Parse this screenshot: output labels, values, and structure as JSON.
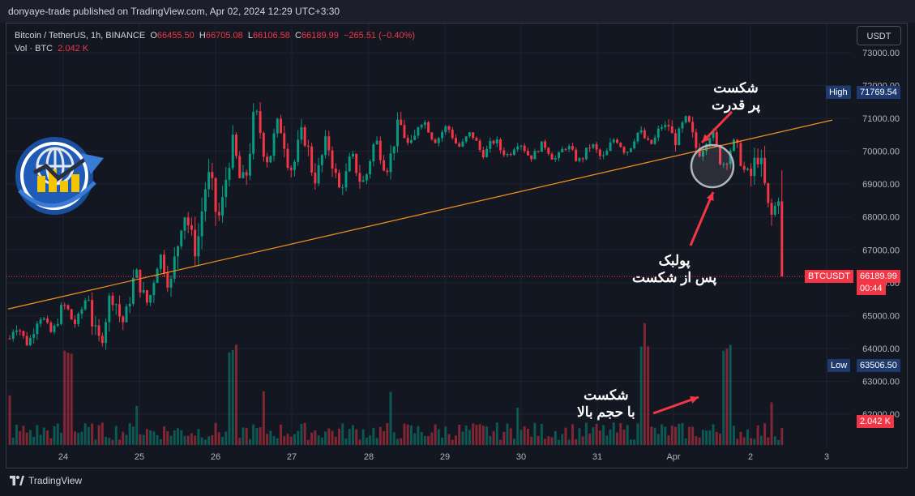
{
  "publisher_line": "donyaye-trade published on TradingView.com, Apr 02, 2024 12:29 UTC+3:30",
  "legend": {
    "symbol": "Bitcoin / TetherUS, 1h, BINANCE",
    "open_label": "O",
    "open": "66455.50",
    "high_label": "H",
    "high": "66705.08",
    "low_label": "L",
    "low": "66106.58",
    "close_label": "C",
    "close": "66189.99",
    "change": "−265.51 (−0.40%)",
    "vol_label": "Vol · BTC",
    "vol_value": "2.042 K"
  },
  "currency_button": "USDT",
  "price_tags": {
    "high_label": "High",
    "high_value": "71769.54",
    "symbol_label": "BTCUSDT",
    "last_value": "66189.99",
    "countdown": "00:44",
    "low_label": "Low",
    "low_value": "63506.50",
    "volume_value": "2.042 K"
  },
  "annotations": {
    "breakout_line1": "شکست",
    "breakout_line2": "پر قدرت",
    "pullback_line1": "پولبک",
    "pullback_line2": "پس از شکست",
    "volume_line1": "شکست",
    "volume_line2": "با حجم بالا"
  },
  "footer_brand": "TradingView",
  "colors": {
    "background": "#131722",
    "up": "#089981",
    "down": "#f23645",
    "trendline": "#f7931a",
    "grid": "#1f2330",
    "arrow": "#f23645",
    "highlight_circle": "#b2b5be"
  },
  "chart_data": {
    "type": "candlestick",
    "x_tick_labels": [
      "24",
      "25",
      "26",
      "27",
      "28",
      "29",
      "30",
      "31",
      "Apr",
      "2",
      "3"
    ],
    "y_tick_labels": [
      "62000.00",
      "63000.00",
      "64000.00",
      "65000.00",
      "66000.00",
      "67000.00",
      "68000.00",
      "69000.00",
      "70000.00",
      "71000.00",
      "72000.00",
      "73000.00"
    ],
    "ylim": [
      61000,
      74000
    ],
    "price_series_daily_anchors": [
      {
        "day": "24",
        "open": 64300,
        "high": 65600,
        "low": 63800,
        "close": 65300
      },
      {
        "day": "25",
        "open": 64600,
        "high": 66900,
        "low": 63900,
        "close": 66600
      },
      {
        "day": "26",
        "open": 67000,
        "high": 71200,
        "low": 66800,
        "close": 70300
      },
      {
        "day": "27",
        "open": 70500,
        "high": 71600,
        "low": 68500,
        "close": 69500
      },
      {
        "day": "28",
        "open": 69000,
        "high": 71500,
        "low": 68900,
        "close": 70800
      },
      {
        "day": "29",
        "open": 70700,
        "high": 71000,
        "low": 69700,
        "close": 70000
      },
      {
        "day": "30",
        "open": 70100,
        "high": 70300,
        "low": 69200,
        "close": 69900
      },
      {
        "day": "31",
        "open": 69900,
        "high": 70800,
        "low": 69500,
        "close": 70600
      },
      {
        "day": "Apr",
        "open": 70800,
        "high": 71400,
        "low": 69400,
        "close": 69600
      },
      {
        "day": "2",
        "open": 69500,
        "high": 69800,
        "low": 65900,
        "close": 66190
      }
    ],
    "session_high": 71769.54,
    "session_low": 63506.5,
    "last_price": 66189.99,
    "trendline": {
      "start_price": 65200,
      "end_price": 70950
    },
    "volume_spikes": [
      "25",
      "27",
      "Apr",
      "2"
    ]
  }
}
